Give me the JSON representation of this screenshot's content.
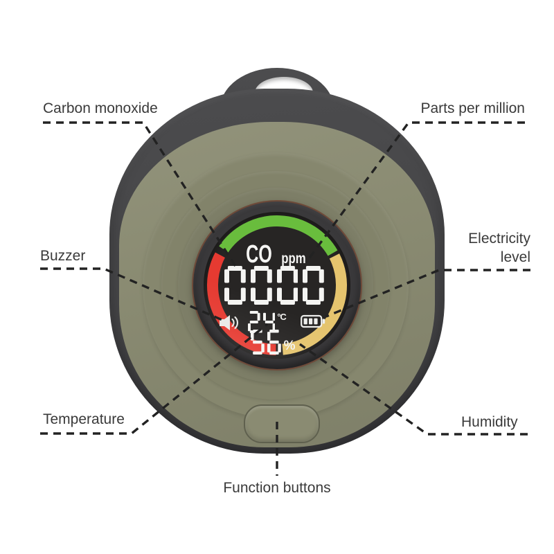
{
  "labels": {
    "carbon_monoxide": "Carbon monoxide",
    "parts_per_million": "Parts per million",
    "buzzer": "Buzzer",
    "electricity_level": "Electricity level",
    "temperature": "Temperature",
    "humidity": "Humidity",
    "function_buttons": "Function buttons"
  },
  "display": {
    "gas_label": "CO",
    "unit_label": "ppm",
    "reading": "0000",
    "temperature_value": "24",
    "temperature_unit": "°C",
    "humidity_value": "56",
    "humidity_unit": "%",
    "battery_bars": 3,
    "gauge": {
      "segments": [
        {
          "name": "green",
          "color": "#69bd3d",
          "start": -56,
          "end": 60
        },
        {
          "name": "yellow",
          "color": "#e5c46e",
          "start": 63,
          "end": 175
        },
        {
          "name": "red",
          "color": "#e63a31",
          "start": 181,
          "end": 298
        }
      ]
    }
  },
  "colors": {
    "shell": "#464648",
    "faceplate": "#8a8b72",
    "screen_bg": "#272524",
    "digit": "#f4f4f2",
    "callout_line": "#222222",
    "label_text": "#3a3a3a",
    "bezel_ring": "#6e4a39"
  }
}
